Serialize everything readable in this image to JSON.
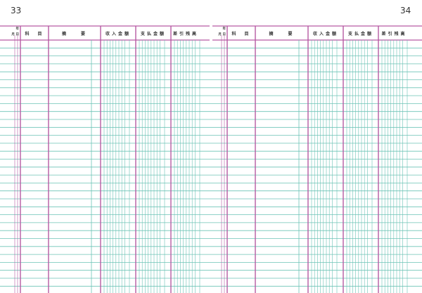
{
  "pages": [
    {
      "number": "33",
      "headers": {
        "year": "年",
        "month_day": "月 日",
        "account": "科　目",
        "description": "摘　　要",
        "income": "収入金額",
        "payment": "支払金額",
        "balance": "差引残高"
      }
    },
    {
      "number": "34",
      "headers": {
        "year": "年",
        "month_day": "月 日",
        "account": "科　目",
        "description": "摘　　要",
        "income": "収入金額",
        "payment": "支払金額",
        "balance": "差引残高"
      }
    }
  ],
  "colors": {
    "border": "#b65aa3",
    "ruling": "#6cc3b6"
  }
}
